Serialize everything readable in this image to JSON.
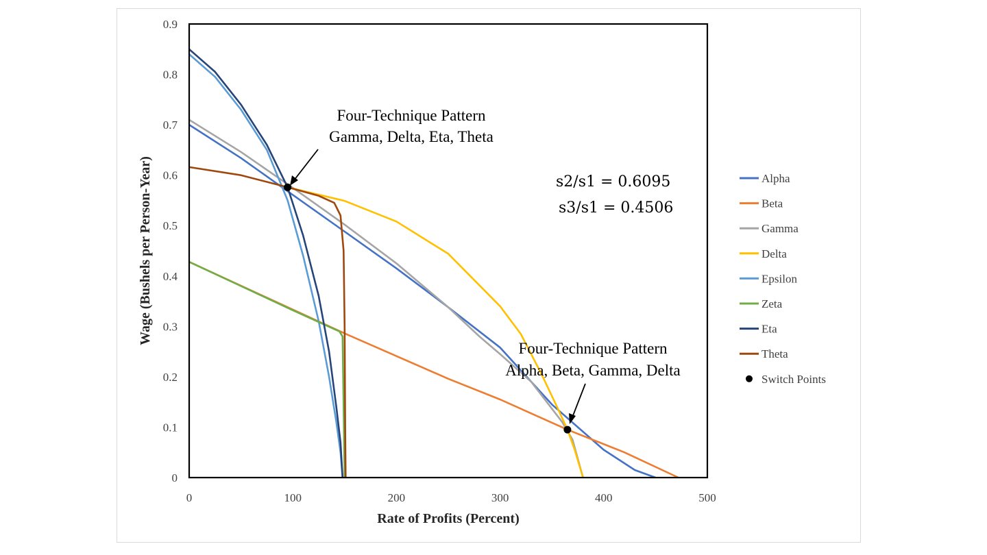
{
  "chart_data": {
    "type": "line",
    "xlabel": "Rate of Profits (Percent)",
    "ylabel": "Wage (Bushels per Person-Year)",
    "xlim": [
      0,
      500
    ],
    "ylim": [
      0,
      0.9
    ],
    "x_ticks": [
      "0",
      "100",
      "200",
      "300",
      "400",
      "500"
    ],
    "y_ticks": [
      "0",
      "0.1",
      "0.2",
      "0.3",
      "0.4",
      "0.5",
      "0.6",
      "0.7",
      "0.8",
      "0.9"
    ],
    "grid": false,
    "legend_position": "right",
    "series": [
      {
        "name": "Alpha",
        "color": "#4472C4",
        "x": [
          0,
          50,
          100,
          150,
          200,
          250,
          300,
          350,
          400,
          430,
          450
        ],
        "y": [
          0.7,
          0.634,
          0.561,
          0.488,
          0.415,
          0.338,
          0.258,
          0.145,
          0.055,
          0.015,
          0.0
        ]
      },
      {
        "name": "Beta",
        "color": "#ED7D31",
        "x": [
          0,
          150,
          250,
          300,
          365,
          420,
          472
        ],
        "y": [
          0.428,
          0.286,
          0.196,
          0.155,
          0.095,
          0.05,
          0.0
        ]
      },
      {
        "name": "Gamma",
        "color": "#A5A5A5",
        "x": [
          0,
          50,
          100,
          150,
          200,
          250,
          280,
          300,
          330,
          360,
          370,
          380
        ],
        "y": [
          0.71,
          0.646,
          0.575,
          0.502,
          0.425,
          0.338,
          0.28,
          0.245,
          0.19,
          0.11,
          0.075,
          0.0
        ]
      },
      {
        "name": "Delta",
        "color": "#FFC000",
        "x": [
          95,
          150,
          200,
          250,
          300,
          320,
          340,
          355,
          365,
          372,
          380
        ],
        "y": [
          0.576,
          0.549,
          0.508,
          0.444,
          0.34,
          0.285,
          0.205,
          0.14,
          0.095,
          0.055,
          0.0
        ]
      },
      {
        "name": "Epsilon",
        "color": "#5B9BD5",
        "x": [
          0,
          25,
          50,
          75,
          95,
          110,
          125,
          135,
          142,
          146,
          148
        ],
        "y": [
          0.84,
          0.795,
          0.73,
          0.65,
          0.55,
          0.44,
          0.31,
          0.2,
          0.11,
          0.05,
          0.0
        ]
      },
      {
        "name": "Zeta",
        "color": "#70AD47",
        "x": [
          0,
          50,
          100,
          130,
          145,
          148,
          149,
          150
        ],
        "y": [
          0.428,
          0.38,
          0.332,
          0.304,
          0.29,
          0.28,
          0.14,
          0.0
        ]
      },
      {
        "name": "Eta",
        "color": "#264478",
        "x": [
          0,
          25,
          50,
          75,
          95,
          110,
          125,
          135,
          142,
          146,
          148
        ],
        "y": [
          0.85,
          0.805,
          0.74,
          0.66,
          0.576,
          0.48,
          0.36,
          0.25,
          0.14,
          0.07,
          0.0
        ]
      },
      {
        "name": "Theta",
        "color": "#9E480E",
        "x": [
          0,
          50,
          95,
          125,
          140,
          146,
          149,
          150,
          150.5,
          151
        ],
        "y": [
          0.616,
          0.6,
          0.576,
          0.559,
          0.545,
          0.52,
          0.45,
          0.3,
          0.1,
          0.0
        ]
      }
    ],
    "switch_points": {
      "name": "Switch Points",
      "color": "#000000",
      "x": [
        95,
        365
      ],
      "y": [
        0.576,
        0.095
      ]
    },
    "annotations": [
      {
        "lines": [
          "Four-Technique Pattern",
          "Gamma, Delta, Eta, Theta"
        ]
      },
      {
        "lines": [
          "Four-Technique Pattern",
          "Alpha, Beta, Gamma, Delta"
        ]
      }
    ],
    "ratios": [
      "s2/s1 = 0.6095",
      "s3/s1 = 0.4506"
    ]
  }
}
